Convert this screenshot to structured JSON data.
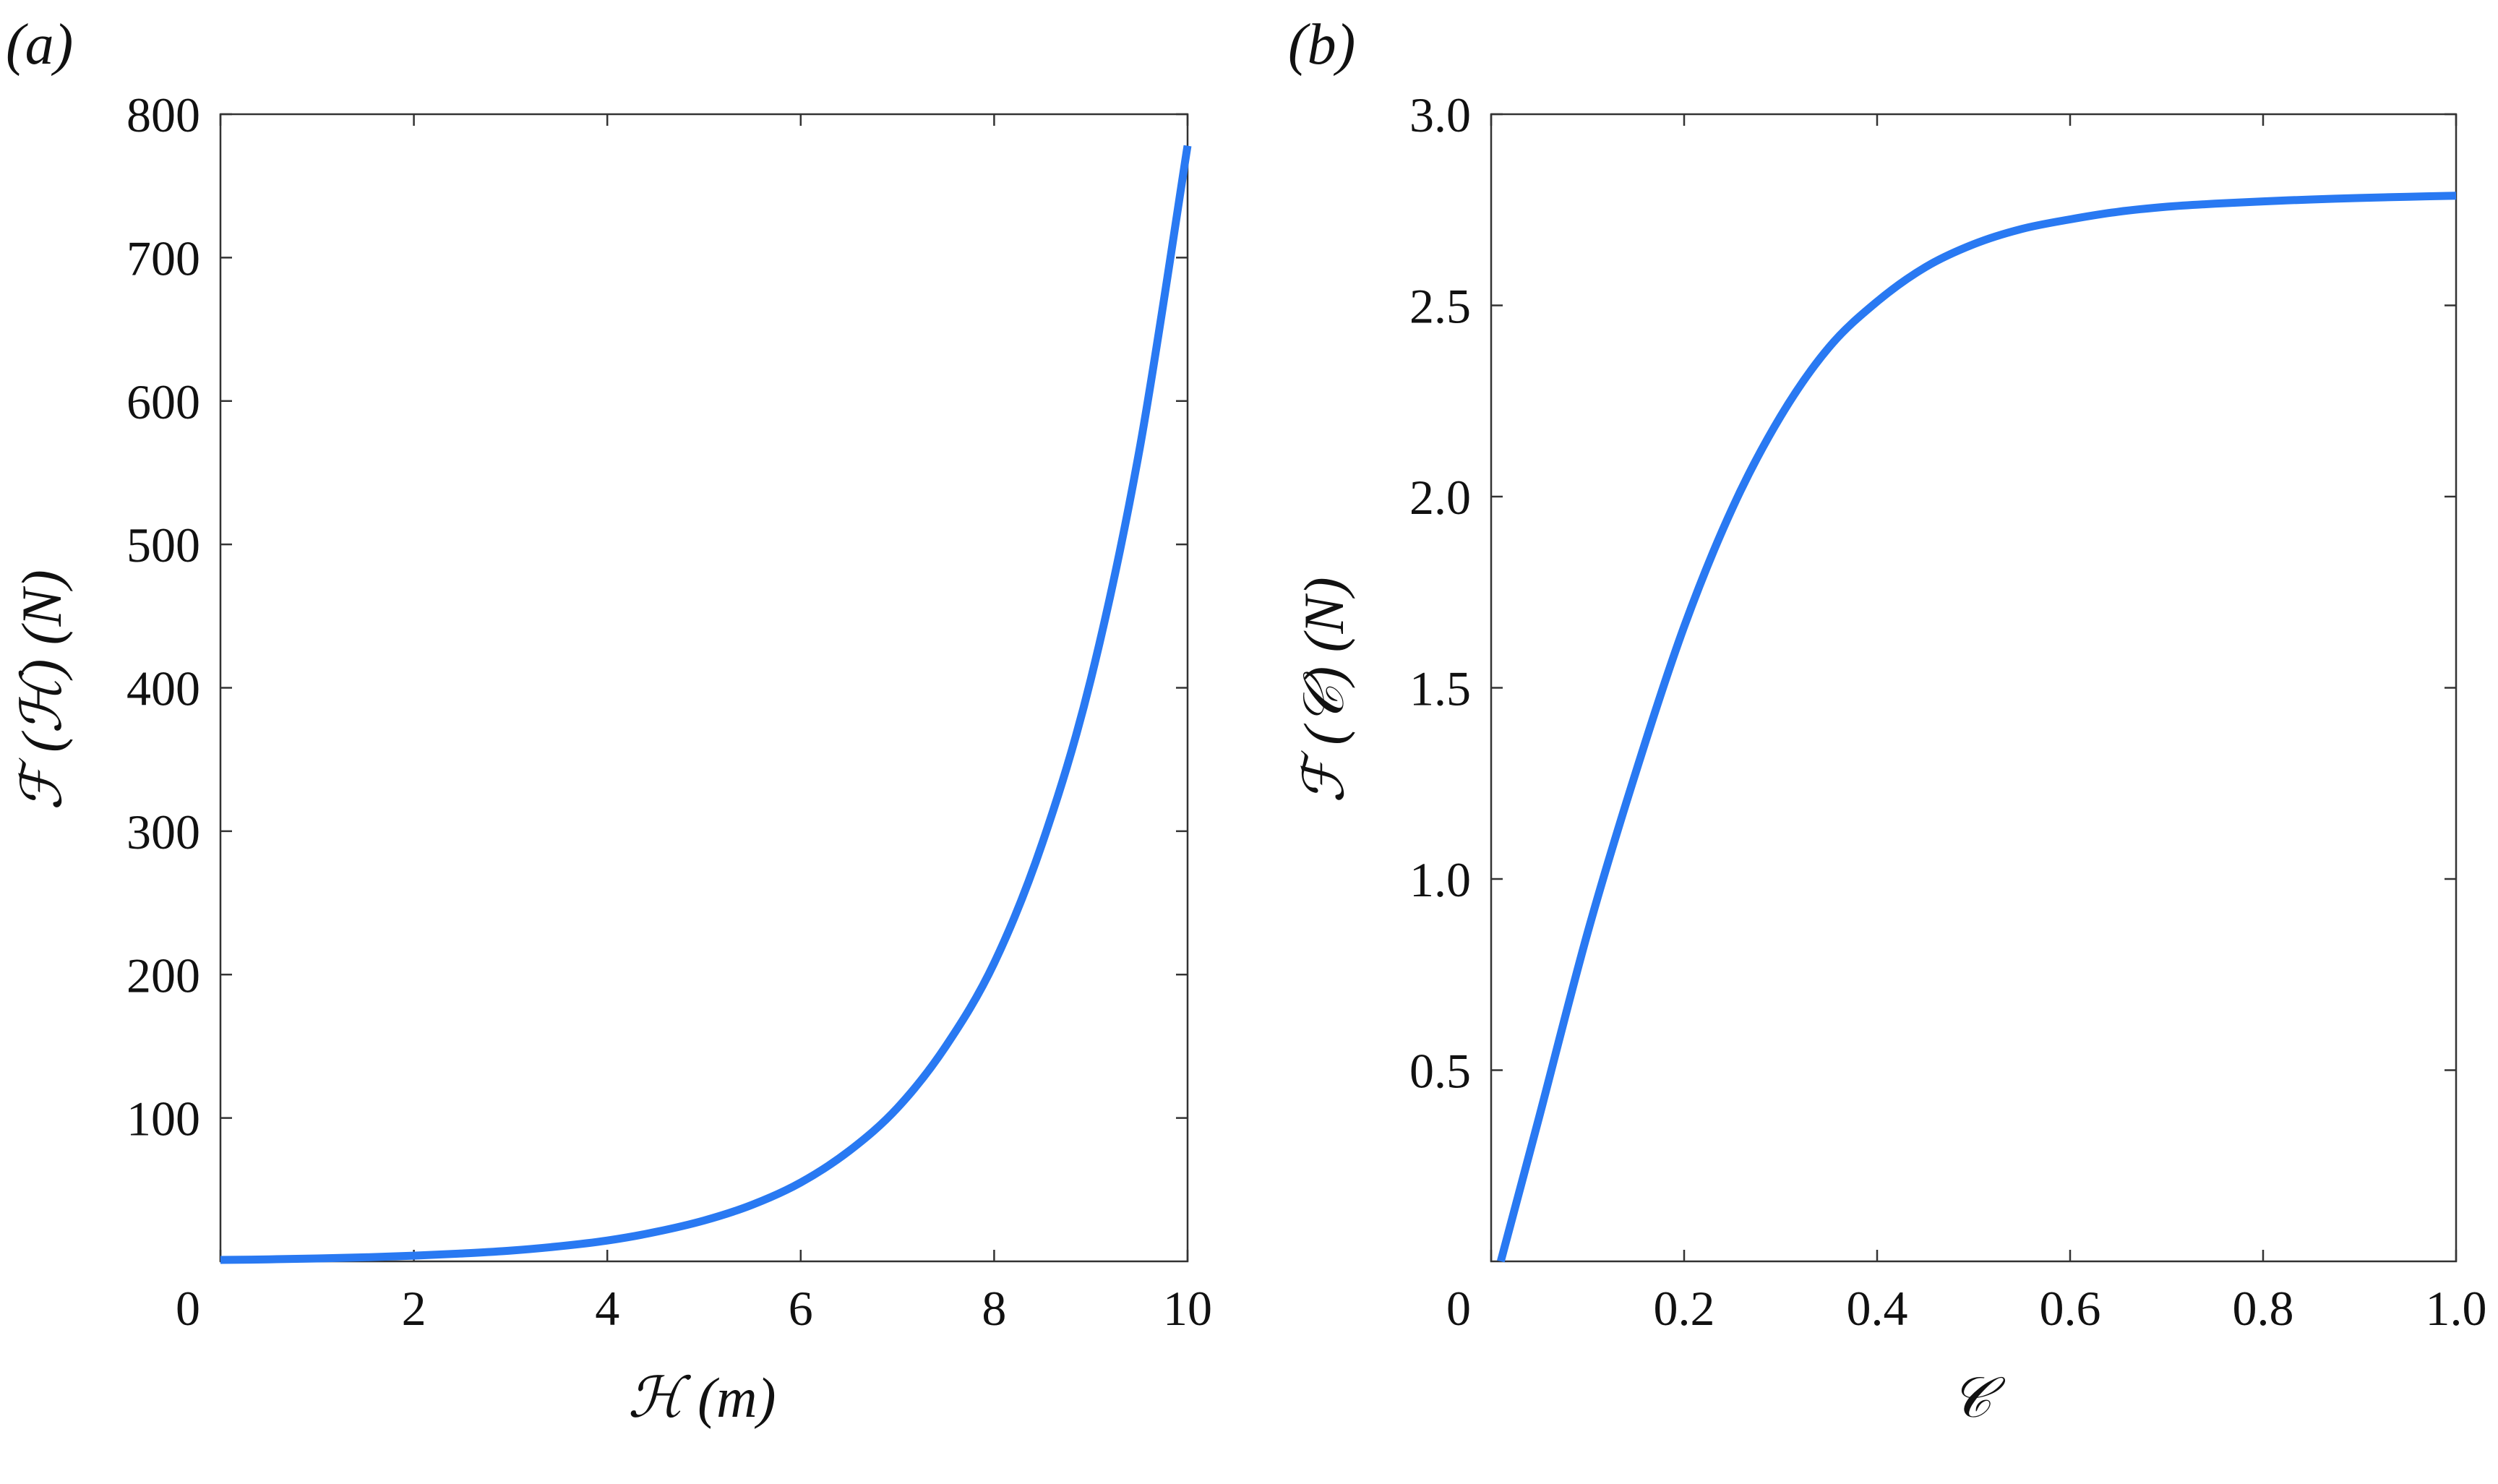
{
  "chart_data": [
    {
      "type": "line",
      "panel_label": "(a)",
      "xlabel": "ℋ (m)",
      "ylabel": "ℱ (ℋ) (N)",
      "xlim": [
        0,
        10
      ],
      "ylim": [
        0,
        800
      ],
      "xticks": [
        0,
        2,
        4,
        6,
        8,
        10
      ],
      "xtick_labels": [
        "0",
        "2",
        "4",
        "6",
        "8",
        "10"
      ],
      "yticks": [
        100,
        200,
        300,
        400,
        500,
        600,
        700,
        800
      ],
      "ytick_labels": [
        "100",
        "200",
        "300",
        "400",
        "500",
        "600",
        "700",
        "800"
      ],
      "grid": false,
      "line_color": "#2979F2",
      "series": [
        {
          "x": [
            0,
            0.5,
            1,
            1.5,
            2,
            2.5,
            3,
            3.5,
            4,
            4.5,
            5,
            5.5,
            6,
            6.5,
            7,
            7.5,
            8,
            8.5,
            9,
            9.5,
            10
          ],
          "y": [
            1,
            1.4,
            2,
            2.8,
            4,
            5.5,
            7.5,
            10.5,
            14.5,
            20.5,
            28.5,
            39.5,
            55,
            77,
            107,
            150,
            208,
            292,
            406,
            565,
            778
          ]
        }
      ]
    },
    {
      "type": "line",
      "panel_label": "(b)",
      "xlabel": "𝒞",
      "ylabel": "ℱ (𝒞) (N)",
      "xlim": [
        0,
        1.0
      ],
      "ylim": [
        0,
        3.0
      ],
      "xticks": [
        0,
        0.2,
        0.4,
        0.6,
        0.8,
        1.0
      ],
      "xtick_labels": [
        "0",
        "0.2",
        "0.4",
        "0.6",
        "0.8",
        "1.0"
      ],
      "yticks": [
        0.5,
        1.0,
        1.5,
        2.0,
        2.5,
        3.0
      ],
      "ytick_labels": [
        "0.5",
        "1.0",
        "1.5",
        "2.0",
        "2.5",
        "3.0"
      ],
      "grid": false,
      "line_color": "#2979F2",
      "series": [
        {
          "x": [
            0.01,
            0.05,
            0.1,
            0.15,
            0.2,
            0.25,
            0.3,
            0.35,
            0.4,
            0.45,
            0.5,
            0.55,
            0.6,
            0.65,
            0.7,
            0.75,
            0.8,
            0.85,
            0.9,
            0.95,
            1.0
          ],
          "y": [
            0.0,
            0.38,
            0.86,
            1.28,
            1.66,
            1.97,
            2.21,
            2.39,
            2.51,
            2.6,
            2.66,
            2.7,
            2.725,
            2.745,
            2.758,
            2.766,
            2.772,
            2.777,
            2.781,
            2.784,
            2.787
          ]
        }
      ]
    }
  ]
}
